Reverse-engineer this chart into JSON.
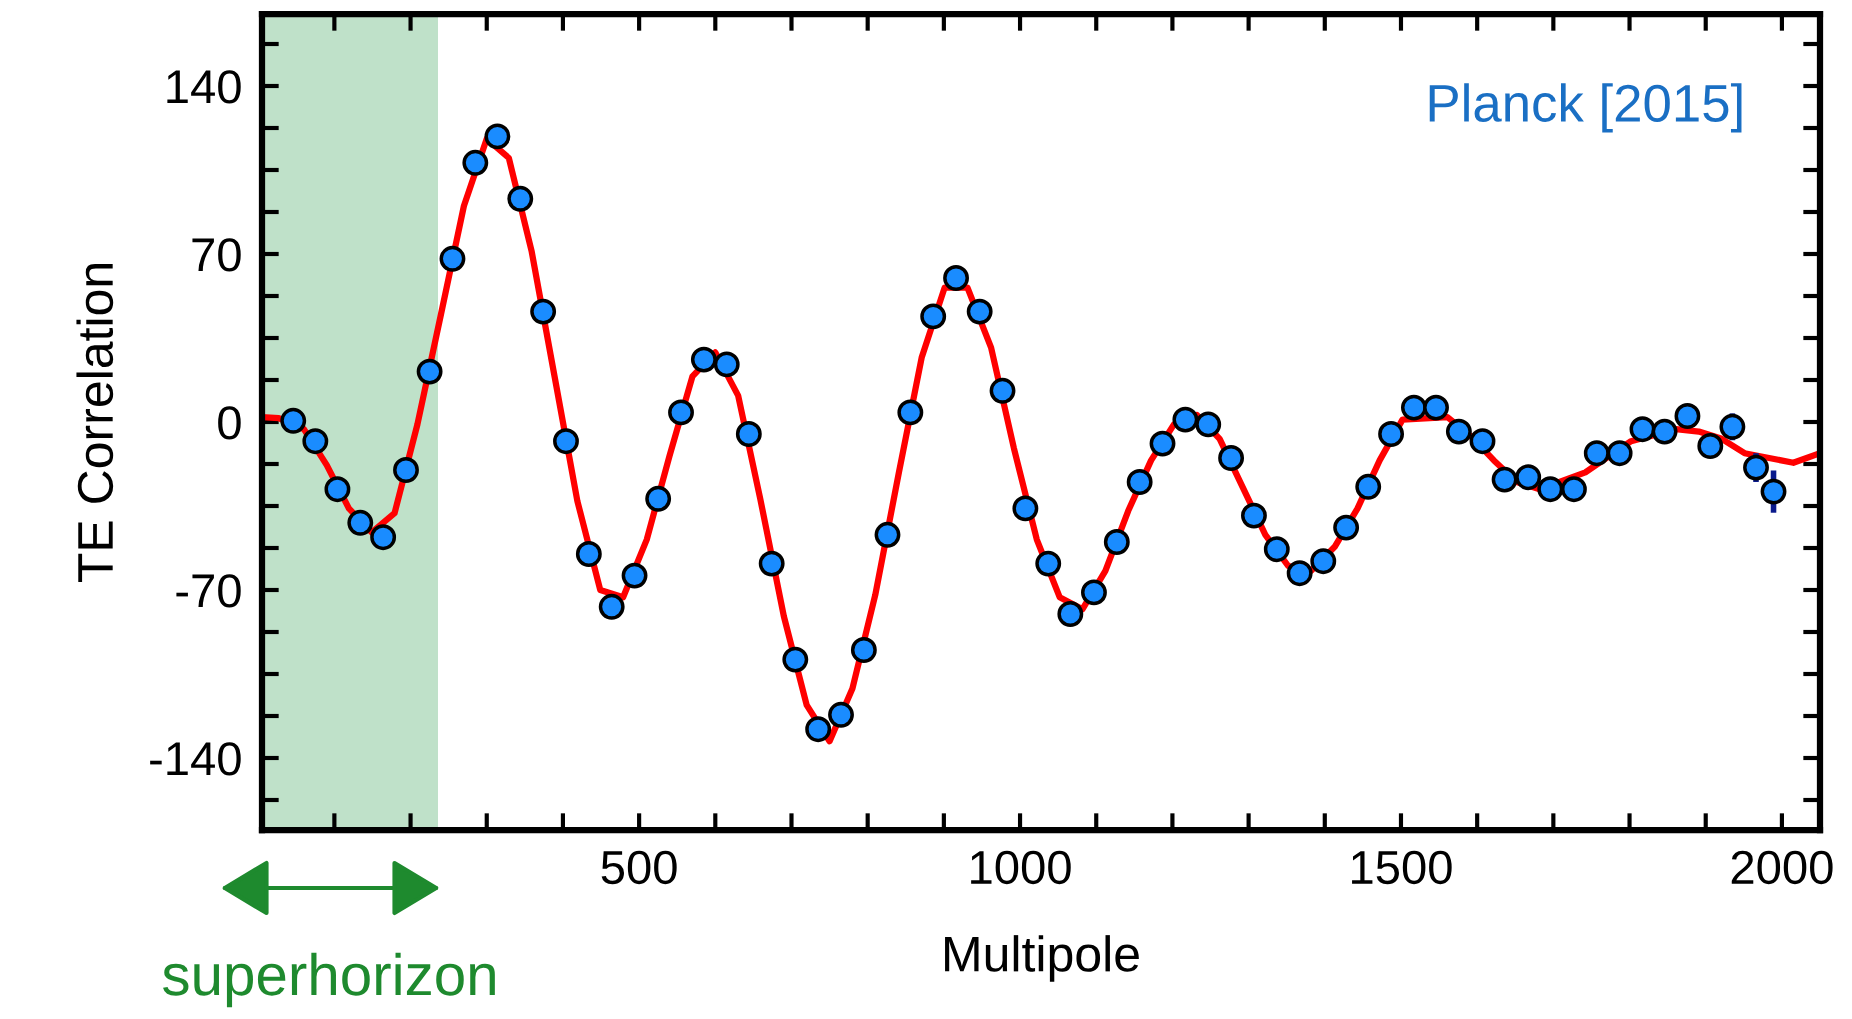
{
  "chart_data": {
    "type": "scatter",
    "xlabel": "Multipole",
    "ylabel": "TE Correlation",
    "annotations": [
      "Planck [2015]",
      "superhorizon"
    ],
    "xlim": [
      5,
      2050
    ],
    "ylim": [
      -170,
      170
    ],
    "xticks": [
      500,
      1000,
      1500,
      2000
    ],
    "yticks": [
      -140,
      -70,
      0,
      70,
      140
    ],
    "grid": false,
    "legend": false,
    "bands": [
      {
        "axis": "x",
        "from": 5,
        "to": 236,
        "label": null,
        "color": "#bfe1c9"
      }
    ],
    "series": [
      {
        "type": "line",
        "color": "#ff0000",
        "marker": "none",
        "line_style": "solid",
        "x": [
          5,
          27,
          60,
          90,
          119,
          149,
          179,
          209,
          240,
          270,
          300,
          329,
          359,
          389,
          419,
          449,
          479,
          510,
          540,
          570,
          600,
          630,
          659,
          690,
          720,
          750,
          780,
          810,
          841,
          871,
          901,
          931,
          962,
          992,
          1022,
          1052,
          1082,
          1112,
          1142,
          1172,
          1202,
          1232,
          1262,
          1292,
          1322,
          1352,
          1382,
          1413,
          1443,
          1472,
          1502,
          1561,
          1592,
          1622,
          1652,
          1682,
          1742,
          1802,
          1861,
          1891,
          1921,
          1951,
          2015,
          2050
        ],
        "values": [
          2,
          1.6,
          -3,
          -18,
          -36,
          -46,
          -38,
          -1,
          45,
          90,
          118,
          110,
          71,
          19,
          -33,
          -70,
          -73,
          -49,
          -14,
          19,
          29,
          11,
          -32,
          -81,
          -118,
          -133,
          -111,
          -72,
          -21,
          27,
          56,
          56,
          31,
          -11,
          -49,
          -73,
          -78,
          -62,
          -37,
          -16,
          -1,
          3,
          -7,
          -27,
          -47,
          -60,
          -62,
          -52,
          -36,
          -16,
          1,
          2,
          -6,
          -16,
          -25,
          -28,
          -21,
          -8,
          -3,
          -4,
          -7,
          -13,
          -17,
          -13
        ]
      },
      {
        "color": "#1a8cff",
        "marker": "circle",
        "x": [
          46,
          75,
          104,
          134,
          164,
          194,
          225,
          255,
          285,
          314,
          344,
          374,
          404,
          434,
          464,
          494,
          525,
          555,
          585,
          615,
          644,
          674,
          705,
          735,
          765,
          795,
          826,
          856,
          886,
          916,
          947,
          977,
          1007,
          1037,
          1066,
          1097,
          1127,
          1157,
          1187,
          1217,
          1247,
          1277,
          1307,
          1337,
          1367,
          1398,
          1428,
          1457,
          1487,
          1517,
          1546,
          1576,
          1607,
          1636,
          1667,
          1696,
          1727,
          1757,
          1787,
          1817,
          1846,
          1876,
          1906,
          1935,
          1966,
          1989
        ],
        "values": [
          0.5,
          -8,
          -28,
          -42,
          -48,
          -20,
          21,
          68,
          108,
          119,
          93,
          46,
          -8,
          -55,
          -77,
          -64,
          -32,
          4,
          26,
          24,
          -5,
          -59,
          -99,
          -128,
          -122,
          -95,
          -47,
          4,
          44,
          60,
          46,
          13,
          -36,
          -59,
          -80,
          -71,
          -50,
          -25,
          -9,
          1,
          -1,
          -15,
          -39,
          -53,
          -63,
          -58,
          -44,
          -27,
          -5,
          6,
          6,
          -4,
          -8,
          -24,
          -23,
          -28,
          -28,
          -13,
          -13,
          -3,
          -4,
          2.5,
          -10,
          -2,
          -19,
          -29
        ],
        "errors": [
          null,
          null,
          null,
          null,
          null,
          null,
          null,
          null,
          null,
          null,
          null,
          null,
          null,
          null,
          null,
          null,
          null,
          null,
          null,
          null,
          null,
          null,
          null,
          null,
          null,
          null,
          null,
          null,
          null,
          null,
          null,
          null,
          null,
          null,
          null,
          null,
          null,
          null,
          null,
          null,
          null,
          null,
          null,
          null,
          null,
          null,
          null,
          null,
          null,
          null,
          null,
          null,
          null,
          null,
          null,
          null,
          null,
          null,
          null,
          null,
          null,
          5,
          4.7,
          5.6,
          6,
          8.8
        ]
      }
    ]
  }
}
